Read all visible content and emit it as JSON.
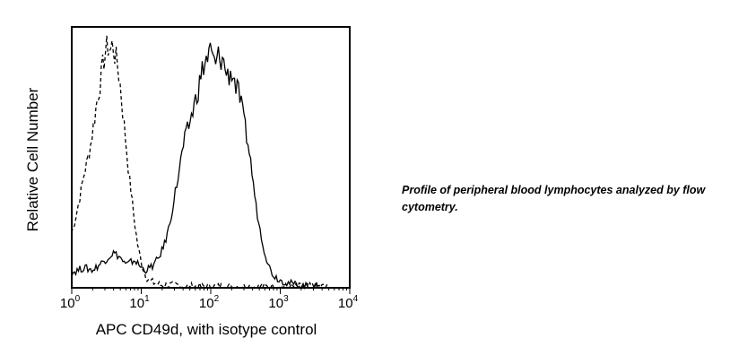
{
  "chart_data": {
    "type": "histogram",
    "xlabel": "APC CD49d, with isotype control",
    "ylabel": "Relative Cell Number",
    "x_scale": "log",
    "xlim": [
      1,
      10000
    ],
    "ylim": [
      0,
      100
    ],
    "x_ticks": [
      {
        "base": "10",
        "exp": "0",
        "value": 1
      },
      {
        "base": "10",
        "exp": "1",
        "value": 10
      },
      {
        "base": "10",
        "exp": "2",
        "value": 100
      },
      {
        "base": "10",
        "exp": "3",
        "value": 1000
      },
      {
        "base": "10",
        "exp": "4",
        "value": 10000
      }
    ],
    "series": [
      {
        "style": "dashed",
        "x": [
          1.0,
          1.1,
          1.2,
          1.35,
          1.5,
          1.7,
          1.9,
          2.1,
          2.3,
          2.6,
          2.8,
          3.0,
          3.3,
          3.6,
          3.9,
          4.2,
          4.6,
          5.0,
          5.5,
          6.0,
          6.6,
          7.3,
          8.0,
          9.0,
          10.5,
          12.0,
          15,
          20,
          30,
          50,
          100,
          300,
          1000,
          5000
        ],
        "y": [
          22,
          26,
          31,
          38,
          45,
          51,
          58,
          66,
          74,
          82,
          88,
          93,
          96,
          94,
          97,
          92,
          88,
          80,
          68,
          58,
          46,
          36,
          26,
          16,
          8,
          4,
          2,
          1,
          1,
          0.5,
          0.5,
          0.5,
          0.5,
          0.5
        ]
      },
      {
        "style": "solid",
        "x": [
          1.0,
          1.5,
          2.0,
          3.0,
          4.0,
          5.0,
          6.0,
          8.0,
          10,
          12,
          15,
          18,
          22,
          26,
          30,
          35,
          40,
          48,
          55,
          65,
          75,
          85,
          100,
          115,
          130,
          150,
          175,
          200,
          230,
          260,
          300,
          350,
          400,
          450,
          520,
          600,
          700,
          800,
          1000,
          1300,
          1800,
          2500,
          3500
        ],
        "y": [
          6,
          8,
          7,
          11,
          14,
          12,
          9,
          11,
          8,
          7,
          9,
          12,
          18,
          26,
          36,
          46,
          56,
          64,
          70,
          78,
          86,
          90,
          94,
          88,
          92,
          90,
          84,
          86,
          80,
          76,
          66,
          56,
          44,
          32,
          22,
          14,
          8,
          5,
          3,
          2,
          1,
          0.5,
          0.5
        ]
      }
    ]
  },
  "caption": "Profile of peripheral blood lymphocytes analyzed by flow cytometry."
}
